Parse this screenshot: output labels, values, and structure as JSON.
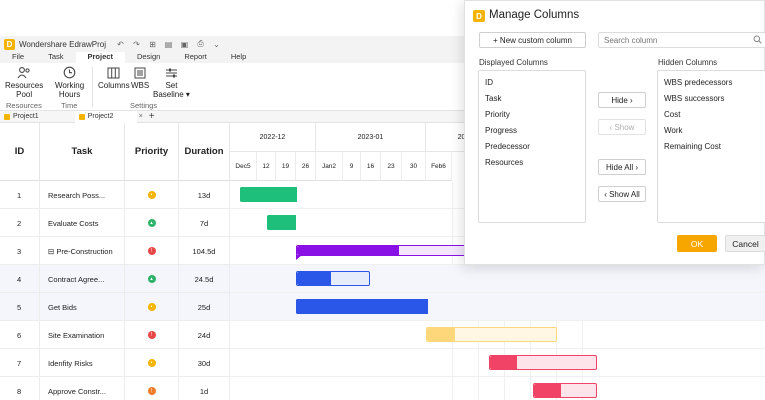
{
  "app": {
    "title": "Wondershare EdrawProj"
  },
  "quick_access": [
    "undo-icon",
    "redo-icon",
    "new-icon",
    "open-icon",
    "save-icon",
    "print-icon",
    "more-icon"
  ],
  "menu_tabs": [
    {
      "label": "File",
      "active": false
    },
    {
      "label": "Task",
      "active": false
    },
    {
      "label": "Project",
      "active": true
    },
    {
      "label": "Design",
      "active": false
    },
    {
      "label": "Report",
      "active": false
    },
    {
      "label": "Help",
      "active": false
    }
  ],
  "ribbon": {
    "resources_pool": "Resources\nPool",
    "working_hours": "Working\nHours",
    "columns": "Columns",
    "wbs": "WBS",
    "set_baseline": "Set\nBaseline ▾",
    "groups": {
      "resources": "Resources",
      "time": "Time",
      "settings": "Settings"
    }
  },
  "project_tabs": [
    {
      "label": "Project1",
      "active": false
    },
    {
      "label": "Project2",
      "active": true
    }
  ],
  "grid": {
    "headers": {
      "id": "ID",
      "task": "Task",
      "priority": "Priority",
      "duration": "Duration"
    },
    "rows": [
      {
        "id": "1",
        "task": "Research Poss...",
        "priority": "med",
        "duration": "13d"
      },
      {
        "id": "2",
        "task": "Evaluate Costs",
        "priority": "low",
        "duration": "7d"
      },
      {
        "id": "3",
        "task": "⊟ Pre-Construction",
        "priority": "high",
        "duration": "104.5d"
      },
      {
        "id": "4",
        "task": "Contract Agree...",
        "priority": "low",
        "duration": "24.5d"
      },
      {
        "id": "5",
        "task": "Get Bids",
        "priority": "med",
        "duration": "25d"
      },
      {
        "id": "6",
        "task": "Site Examination",
        "priority": "high",
        "duration": "24d"
      },
      {
        "id": "7",
        "task": "Idenfity Risks",
        "priority": "med",
        "duration": "30d"
      },
      {
        "id": "8",
        "task": "Approve Constr...",
        "priority": "urgent",
        "duration": "1d"
      }
    ],
    "priority_colors": {
      "low": "#2fb36b",
      "med": "#f5b400",
      "high": "#e84747",
      "urgent": "#f07c2a"
    }
  },
  "timeline": {
    "months": [
      {
        "label": "2022-12"
      },
      {
        "label": "2023-01"
      },
      {
        "label": "2023-02"
      }
    ],
    "days": [
      "Dec5",
      "12",
      "19",
      "26",
      "Jan2",
      "9",
      "16",
      "23",
      "30",
      "Feb6"
    ],
    "colors": {
      "green": "#1dbf7a",
      "purple": "#8a11e6",
      "purple_light": "#f3e6fd",
      "blue": "#2b57e8",
      "blue_light": "#e7ecfc",
      "yellow": "#fdd77a",
      "yellow_light": "#fff6e3",
      "red": "#f14365",
      "red_light": "#fde4ea"
    }
  },
  "dialog": {
    "title": "Manage Columns",
    "new_custom_column": "+ New custom column",
    "search_placeholder": "Search column",
    "displayed_label": "Displayed Columns",
    "hidden_label": "Hidden Columns",
    "displayed": [
      "ID",
      "Task",
      "Priority",
      "Progress",
      "Predecessor",
      "Resources"
    ],
    "hidden": [
      "WBS predecessors",
      "WBS successors",
      "Cost",
      "Work",
      "Remaining Cost"
    ],
    "hide": "Hide ›",
    "show": "‹ Show",
    "hide_all": "Hide All ›",
    "show_all": "‹ Show All",
    "ok": "OK",
    "cancel": "Cancel"
  }
}
